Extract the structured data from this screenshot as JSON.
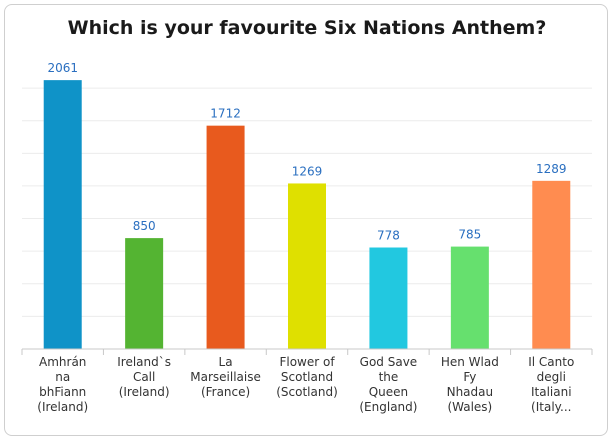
{
  "chart_data": {
    "type": "bar",
    "title": "Which is your favourite Six Nations Anthem?",
    "categories": [
      [
        "Amhrán",
        "na",
        "bhFiann",
        "(Ireland)"
      ],
      [
        "Ireland`s",
        "Call",
        "(Ireland)"
      ],
      [
        "La",
        "Marseillaise",
        "(France)"
      ],
      [
        "Flower of",
        "Scotland",
        "(Scotland)"
      ],
      [
        "God Save",
        "the",
        "Queen",
        "(England)"
      ],
      [
        "Hen Wlad",
        "Fy",
        "Nhadau",
        "(Wales)"
      ],
      [
        "Il Canto",
        "degli",
        "Italiani",
        "(Italy..."
      ]
    ],
    "values": [
      2061,
      850,
      1712,
      1269,
      778,
      785,
      1289
    ],
    "colors": [
      "#0f93c8",
      "#54b432",
      "#e85a1e",
      "#dfe000",
      "#22c8e0",
      "#66e06e",
      "#ff8c50"
    ],
    "ylim": [
      0,
      2200
    ],
    "grid": true
  }
}
